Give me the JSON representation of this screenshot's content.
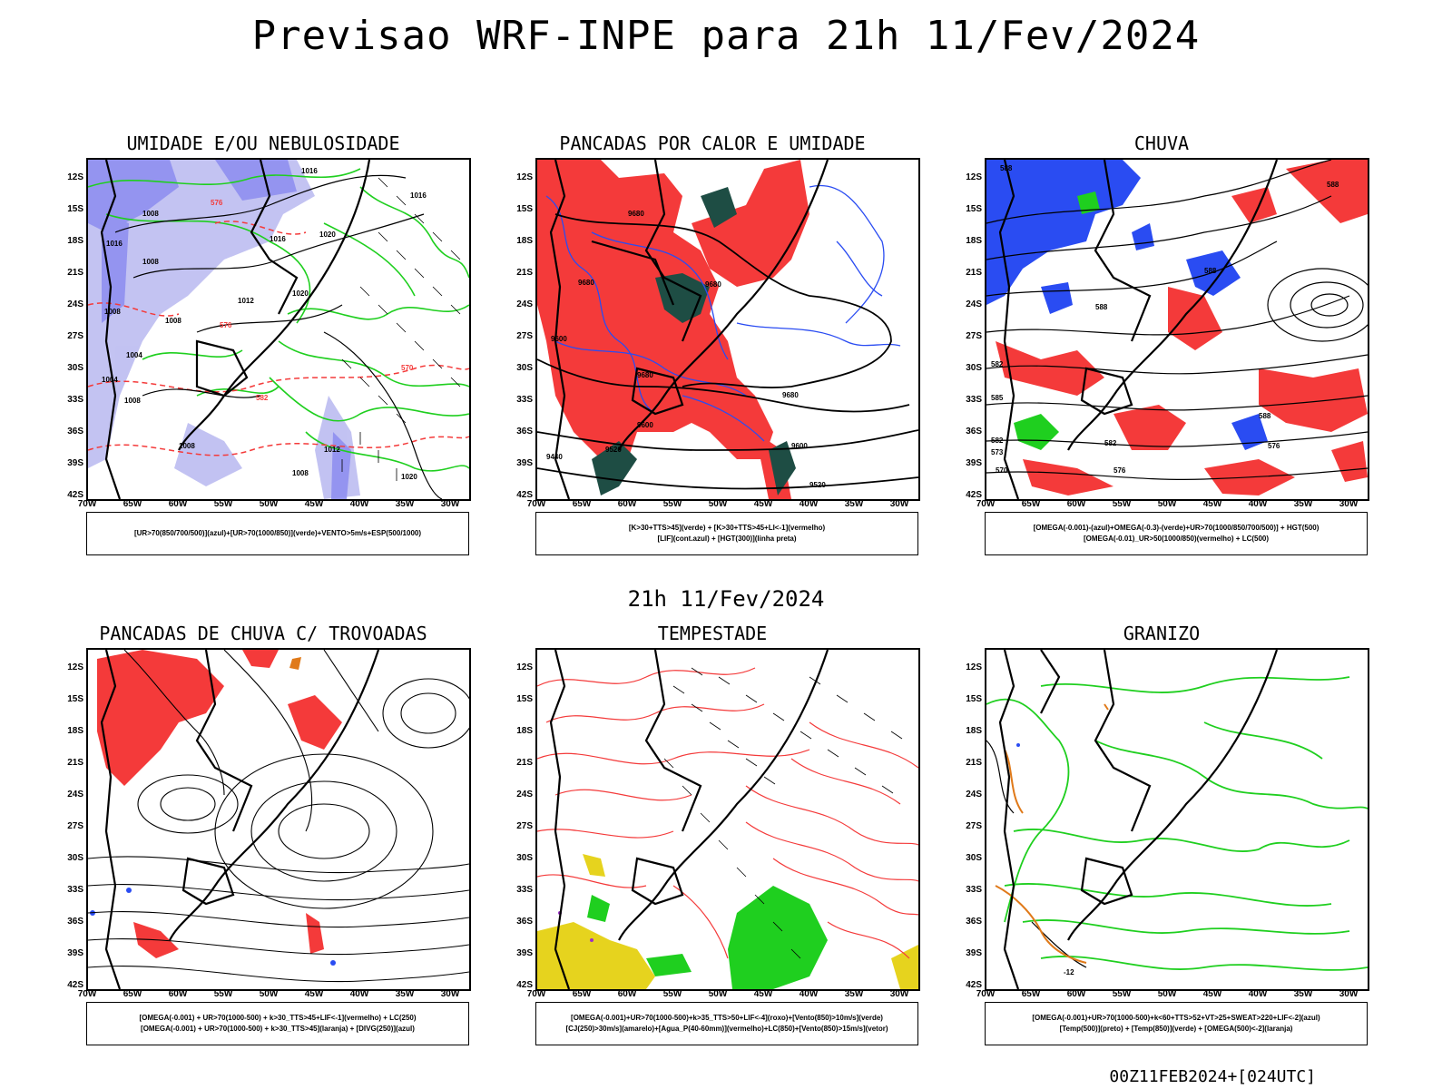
{
  "title": "Previsao WRF-INPE  para 21h 11/Fev/2024",
  "mid_title": "21h 11/Fev/2024",
  "footer": "00Z11FEB2024+[024UTC]",
  "axes": {
    "lat_labels": [
      "12S",
      "15S",
      "18S",
      "21S",
      "24S",
      "27S",
      "30S",
      "33S",
      "36S",
      "39S",
      "42S"
    ],
    "lon_labels": [
      "70W",
      "65W",
      "60W",
      "55W",
      "50W",
      "45W",
      "40W",
      "35W",
      "30W"
    ]
  },
  "panels": [
    {
      "title": "UMIDADE E/OU NEBULOSIDADE",
      "legend_line1": "[UR>70(850/700/500)](azul)+[UR>70(1000/850)](verde)+VENTO>5m/s+ESP(500/1000)",
      "legend_line2": "",
      "labels": [
        "1016",
        "1016",
        "1016",
        "1016",
        "1008",
        "1008",
        "1008",
        "1020",
        "1020",
        "1012",
        "1008",
        "1004",
        "1004",
        "1008",
        "1008",
        "1012",
        "1008",
        "1020",
        "576",
        "570",
        "576",
        "582"
      ]
    },
    {
      "title": "PANCADAS POR CALOR E UMIDADE",
      "legend_line1": "[K>30+TTS>45](verde) + [K>30+TTS>45+LI<-1](vermelho)",
      "legend_line2": "[LIF](cont.azul) + [HGT(300)](linha preta)",
      "labels": [
        "9680",
        "9680",
        "9680",
        "9600",
        "9680",
        "9680",
        "9600",
        "9600",
        "9440",
        "9520",
        "9520"
      ]
    },
    {
      "title": "CHUVA",
      "legend_line1": "[OMEGA(-0.001)-(azul)+OMEGA(-0.3)-(verde)+UR>70(1000/850/700/500)] + HGT(500)",
      "legend_line2": "[OMEGA(-0.01)_UR>50(1000/850)(vermelho) + LC(500)",
      "labels": [
        "588",
        "588",
        "588",
        "588",
        "582",
        "585",
        "588",
        "582",
        "576",
        "573",
        "570",
        "582",
        "576"
      ]
    },
    {
      "title": "PANCADAS DE CHUVA C/ TROVOADAS",
      "legend_line1": "[OMEGA(-0.001) + UR>70(1000-500) + k>30_TTS>45+LIF<-1](vermelho) + LC(250)",
      "legend_line2": "[OMEGA(-0.001) + UR>70(1000-500) + k>30_TTS>45](laranja) + [DIVG(250)](azul)",
      "labels": []
    },
    {
      "title": "TEMPESTADE",
      "legend_line1": "[OMEGA(-0.001)+UR>70(1000-500)+k>35_TTS>50+LIF<-4](roxo)+[Vento(850)>10m/s](verde)",
      "legend_line2": "[CJ(250)>30m/s](amarelo)+[Agua_P(40-60mm)](vermelho)+LC(850)+[Vento(850)>15m/s](vetor)",
      "labels": []
    },
    {
      "title": "GRANIZO",
      "legend_line1": "[OMEGA(-0.001)+UR>70(1000-500)+k<60+TTS>52+VT>25+SWEAT>220+LIF<-2](azul)",
      "legend_line2": "[Temp(500)](preto) + [Temp(850)](verde) + [OMEGA(500)<-2](laranja)",
      "labels": [
        "-12"
      ]
    }
  ],
  "colors": {
    "red": "#f43a3a",
    "blue": "#2a4cf2",
    "lightblue": "#b8b8f0",
    "green": "#1fcf1f",
    "darkgreen": "#1e4d44",
    "yellow": "#e6d31e",
    "orange": "#e07a1a",
    "black": "#000000"
  }
}
